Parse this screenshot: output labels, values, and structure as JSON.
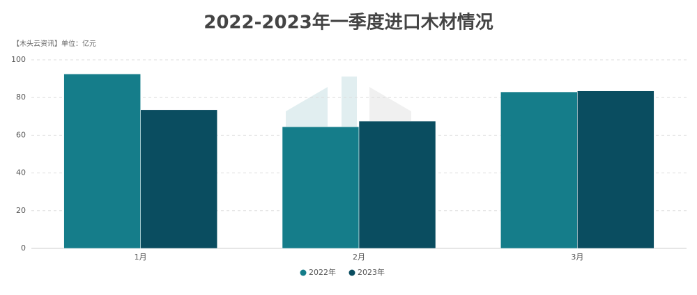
{
  "chart_data": {
    "type": "bar",
    "title": "2022-2023年一季度进口木材情况",
    "subtitle": "【木头云资讯】单位：亿元",
    "categories": [
      "1月",
      "2月",
      "3月"
    ],
    "series": [
      {
        "name": "2022年",
        "color": "#157d8a",
        "values": [
          92.5,
          64.5,
          83
        ]
      },
      {
        "name": "2023年",
        "color": "#0a4d60",
        "values": [
          73.5,
          67.5,
          83.5
        ]
      }
    ],
    "ylim": [
      0,
      100
    ],
    "yticks": [
      0,
      20,
      40,
      60,
      80,
      100
    ],
    "grid": true,
    "legend": "bottom"
  }
}
